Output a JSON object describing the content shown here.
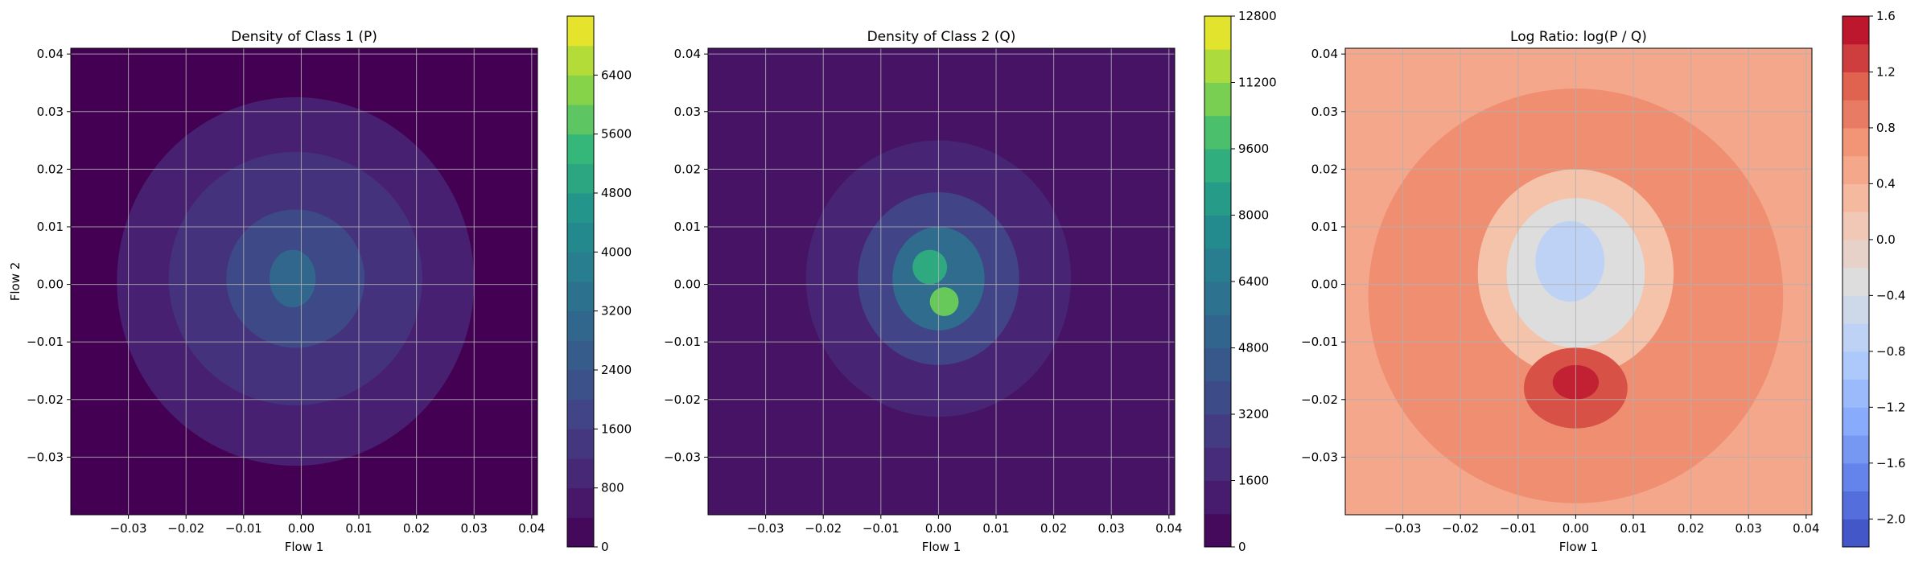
{
  "chart_data": [
    {
      "type": "heatmap",
      "title": "Density of Class 1 (P)",
      "xlabel": "Flow 1",
      "ylabel": "Flow 2",
      "xlim": [
        -0.04,
        0.041
      ],
      "ylim": [
        -0.04,
        0.041
      ],
      "xticks": [
        "−0.03",
        "−0.02",
        "−0.01",
        "0.00",
        "0.01",
        "0.02",
        "0.03",
        "0.04"
      ],
      "xtick_values": [
        -0.03,
        -0.02,
        -0.01,
        0.0,
        0.01,
        0.02,
        0.03,
        0.04
      ],
      "yticks": [
        "−0.03",
        "−0.02",
        "−0.01",
        "0.00",
        "0.01",
        "0.02",
        "0.03",
        "0.04"
      ],
      "ytick_values": [
        -0.03,
        -0.02,
        -0.01,
        0.0,
        0.01,
        0.02,
        0.03,
        0.04
      ],
      "grid": true,
      "colormap": "viridis",
      "colorbar": {
        "min": 0,
        "max": 7200,
        "ticks": [
          "0",
          "800",
          "1600",
          "2400",
          "3200",
          "4000",
          "4800",
          "5600",
          "6400"
        ],
        "tick_values": [
          0,
          800,
          1600,
          2400,
          3200,
          4000,
          4800,
          5600,
          6400
        ]
      },
      "background_value": 0,
      "blobs": [
        {
          "cx": -0.001,
          "cy": 0.0005,
          "rx": 0.031,
          "ry": 0.032,
          "value": 800
        },
        {
          "cx": -0.001,
          "cy": 0.001,
          "rx": 0.022,
          "ry": 0.022,
          "value": 1300
        },
        {
          "cx": -0.001,
          "cy": 0.001,
          "rx": 0.012,
          "ry": 0.012,
          "value": 2000
        },
        {
          "cx": -0.0015,
          "cy": 0.001,
          "rx": 0.004,
          "ry": 0.005,
          "value": 3000
        }
      ]
    },
    {
      "type": "heatmap",
      "title": "Density of Class 2 (Q)",
      "xlabel": "Flow 1",
      "ylabel": "",
      "xlim": [
        -0.04,
        0.041
      ],
      "ylim": [
        -0.04,
        0.041
      ],
      "xticks": [
        "−0.03",
        "−0.02",
        "−0.01",
        "0.00",
        "0.01",
        "0.02",
        "0.03",
        "0.04"
      ],
      "xtick_values": [
        -0.03,
        -0.02,
        -0.01,
        0.0,
        0.01,
        0.02,
        0.03,
        0.04
      ],
      "yticks": [
        "−0.03",
        "−0.02",
        "−0.01",
        "0.00",
        "0.01",
        "0.02",
        "0.03",
        "0.04"
      ],
      "ytick_values": [
        -0.03,
        -0.02,
        -0.01,
        0.0,
        0.01,
        0.02,
        0.03,
        0.04
      ],
      "grid": true,
      "colormap": "viridis",
      "colorbar": {
        "min": 0,
        "max": 12800,
        "ticks": [
          "0",
          "1600",
          "3200",
          "4800",
          "6400",
          "8000",
          "9600",
          "11200",
          "12800"
        ],
        "tick_values": [
          0,
          1600,
          3200,
          4800,
          6400,
          8000,
          9600,
          11200,
          12800
        ]
      },
      "background_value": 800,
      "blobs": [
        {
          "cx": 0.0,
          "cy": 0.001,
          "rx": 0.023,
          "ry": 0.024,
          "value": 1600
        },
        {
          "cx": 0.0,
          "cy": 0.001,
          "rx": 0.014,
          "ry": 0.015,
          "value": 3200
        },
        {
          "cx": 0.0,
          "cy": 0.001,
          "rx": 0.008,
          "ry": 0.009,
          "value": 5600
        },
        {
          "cx": -0.0015,
          "cy": 0.003,
          "rx": 0.003,
          "ry": 0.003,
          "value": 9000
        },
        {
          "cx": 0.001,
          "cy": -0.003,
          "rx": 0.0025,
          "ry": 0.0025,
          "value": 10500
        }
      ]
    },
    {
      "type": "heatmap",
      "title": "Log Ratio: log(P / Q)",
      "xlabel": "Flow 1",
      "ylabel": "",
      "xlim": [
        -0.04,
        0.041
      ],
      "ylim": [
        -0.04,
        0.041
      ],
      "xticks": [
        "−0.03",
        "−0.02",
        "−0.01",
        "0.00",
        "0.01",
        "0.02",
        "0.03",
        "0.04"
      ],
      "xtick_values": [
        -0.03,
        -0.02,
        -0.01,
        0.0,
        0.01,
        0.02,
        0.03,
        0.04
      ],
      "yticks": [
        "−0.03",
        "−0.02",
        "−0.01",
        "0.00",
        "0.01",
        "0.02",
        "0.03",
        "0.04"
      ],
      "ytick_values": [
        -0.03,
        -0.02,
        -0.01,
        0.0,
        0.01,
        0.02,
        0.03,
        0.04
      ],
      "grid": true,
      "colormap": "coolwarm",
      "colorbar": {
        "min": -2.2,
        "max": 1.6,
        "ticks": [
          "−2.0",
          "−1.6",
          "−1.2",
          "−0.8",
          "−0.4",
          "0.0",
          "0.4",
          "0.8",
          "1.2",
          "1.6"
        ],
        "tick_values": [
          -2.0,
          -1.6,
          -1.2,
          -0.8,
          -0.4,
          0.0,
          0.4,
          0.8,
          1.2,
          1.6
        ]
      },
      "background_value": 0.5,
      "blobs": [
        {
          "cx": 0.0,
          "cy": -0.002,
          "rx": 0.036,
          "ry": 0.036,
          "value": 0.75
        },
        {
          "cx": 0.0,
          "cy": 0.002,
          "rx": 0.017,
          "ry": 0.018,
          "value": 0.2
        },
        {
          "cx": 0.0,
          "cy": 0.002,
          "rx": 0.012,
          "ry": 0.013,
          "value": -0.3
        },
        {
          "cx": -0.001,
          "cy": 0.004,
          "rx": 0.006,
          "ry": 0.007,
          "value": -0.7
        },
        {
          "cx": 0.0,
          "cy": -0.018,
          "rx": 0.009,
          "ry": 0.007,
          "value": 1.2
        },
        {
          "cx": 0.0,
          "cy": -0.017,
          "rx": 0.004,
          "ry": 0.003,
          "value": 1.45
        }
      ]
    }
  ]
}
